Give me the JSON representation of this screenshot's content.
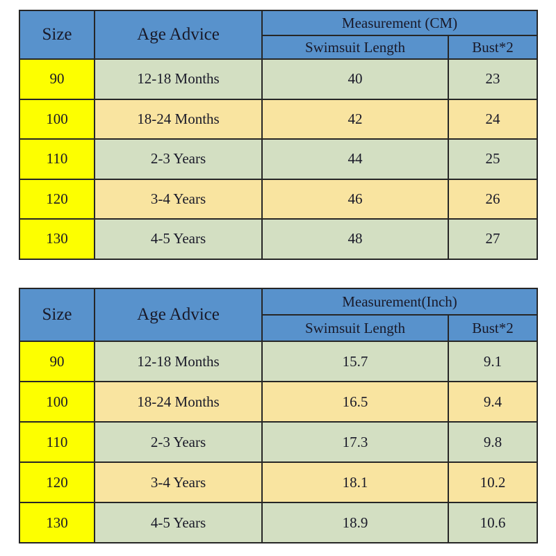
{
  "colors": {
    "header_blue": "#5892cc",
    "size_yellow": "#fdff00",
    "row_green": "#d3dfc2",
    "row_tan": "#f9e4a0",
    "border": "#262626",
    "text": "#191928",
    "background": "#ffffff"
  },
  "chart_data": [
    {
      "type": "table",
      "measurement_label": "Measurement (CM)",
      "columns": {
        "size": "Size",
        "age": "Age Advice",
        "swimsuit_length": "Swimsuit Length",
        "bust2": "Bust*2"
      },
      "rows": [
        {
          "size": "90",
          "age": "12-18 Months",
          "swimsuit_length": "40",
          "bust2": "23"
        },
        {
          "size": "100",
          "age": "18-24 Months",
          "swimsuit_length": "42",
          "bust2": "24"
        },
        {
          "size": "110",
          "age": "2-3 Years",
          "swimsuit_length": "44",
          "bust2": "25"
        },
        {
          "size": "120",
          "age": "3-4 Years",
          "swimsuit_length": "46",
          "bust2": "26"
        },
        {
          "size": "130",
          "age": "4-5 Years",
          "swimsuit_length": "48",
          "bust2": "27"
        }
      ]
    },
    {
      "type": "table",
      "measurement_label": "Measurement(Inch)",
      "columns": {
        "size": "Size",
        "age": "Age Advice",
        "swimsuit_length": "Swimsuit Length",
        "bust2": "Bust*2"
      },
      "rows": [
        {
          "size": "90",
          "age": "12-18 Months",
          "swimsuit_length": "15.7",
          "bust2": "9.1"
        },
        {
          "size": "100",
          "age": "18-24 Months",
          "swimsuit_length": "16.5",
          "bust2": "9.4"
        },
        {
          "size": "110",
          "age": "2-3 Years",
          "swimsuit_length": "17.3",
          "bust2": "9.8"
        },
        {
          "size": "120",
          "age": "3-4 Years",
          "swimsuit_length": "18.1",
          "bust2": "10.2"
        },
        {
          "size": "130",
          "age": "4-5 Years",
          "swimsuit_length": "18.9",
          "bust2": "10.6"
        }
      ]
    }
  ]
}
